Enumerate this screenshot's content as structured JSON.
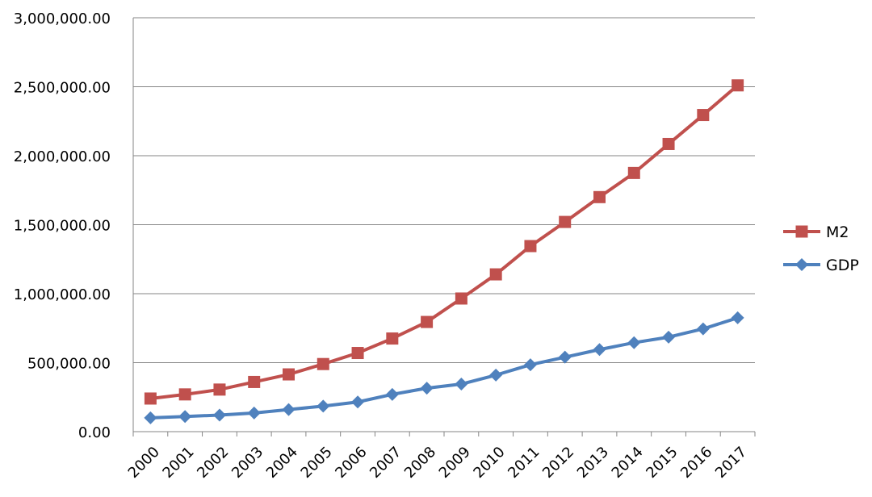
{
  "chart_data": {
    "type": "line",
    "title": "",
    "xlabel": "",
    "ylabel": "",
    "categories": [
      "2000",
      "2001",
      "2002",
      "2003",
      "2004",
      "2005",
      "2006",
      "2007",
      "2008",
      "2009",
      "2010",
      "2011",
      "2012",
      "2013",
      "2014",
      "2015",
      "2016",
      "2017"
    ],
    "ylim": [
      0,
      3000000
    ],
    "yticks": [
      0,
      500000,
      1000000,
      1500000,
      2000000,
      2500000,
      3000000
    ],
    "ytick_labels": [
      "0.00",
      "500,000.00",
      "1,000,000.00",
      "1,500,000.00",
      "2,000,000.00",
      "2,500,000.00",
      "3,000,000.00"
    ],
    "grid": true,
    "legend_position": "right",
    "series": [
      {
        "name": "M2",
        "color": "#C0504D",
        "marker": "square",
        "values": [
          240000,
          270000,
          305000,
          360000,
          415000,
          490000,
          570000,
          675000,
          795000,
          965000,
          1140000,
          1345000,
          1520000,
          1700000,
          1875000,
          2085000,
          2295000,
          2510000
        ]
      },
      {
        "name": "GDP",
        "color": "#4F81BD",
        "marker": "diamond",
        "values": [
          100000,
          110000,
          120000,
          135000,
          160000,
          185000,
          215000,
          270000,
          315000,
          345000,
          410000,
          485000,
          540000,
          595000,
          645000,
          685000,
          745000,
          825000
        ]
      }
    ]
  }
}
